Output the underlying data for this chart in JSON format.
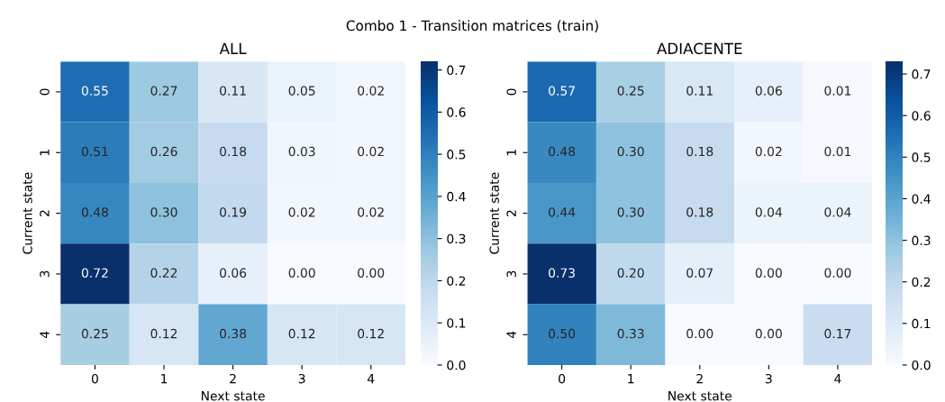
{
  "chart_data": [
    {
      "type": "other",
      "title": "Combo 1 - Transition matrices (train)"
    },
    {
      "type": "heatmap",
      "title": "ALL",
      "xlabel": "Next state",
      "ylabel": "Current state",
      "categories": [
        "0",
        "1",
        "2",
        "3",
        "4"
      ],
      "y_categories": [
        "0",
        "1",
        "2",
        "3",
        "4"
      ],
      "cells": [
        [
          0.55,
          0.27,
          0.11,
          0.05,
          0.02
        ],
        [
          0.51,
          0.26,
          0.18,
          0.03,
          0.02
        ],
        [
          0.48,
          0.3,
          0.19,
          0.02,
          0.02
        ],
        [
          0.72,
          0.22,
          0.06,
          0.0,
          0.0
        ],
        [
          0.25,
          0.12,
          0.38,
          0.12,
          0.12
        ]
      ],
      "cell_labels": [
        [
          "0.55",
          "0.27",
          "0.11",
          "0.05",
          "0.02"
        ],
        [
          "0.51",
          "0.26",
          "0.18",
          "0.03",
          "0.02"
        ],
        [
          "0.48",
          "0.30",
          "0.19",
          "0.02",
          "0.02"
        ],
        [
          "0.72",
          "0.22",
          "0.06",
          "0.00",
          "0.00"
        ],
        [
          "0.25",
          "0.12",
          "0.38",
          "0.12",
          "0.12"
        ]
      ],
      "clim": [
        0,
        0.72
      ],
      "cticks": [
        {
          "value": 0,
          "label": "0.0"
        },
        0.1,
        0.2,
        0.3,
        0.4,
        0.5,
        0.6,
        0.7
      ]
    },
    {
      "type": "heatmap",
      "title": "ADIACENTE",
      "xlabel": "Next state",
      "ylabel": "Current state",
      "categories": [
        "0",
        "1",
        "2",
        "3",
        "4"
      ],
      "y_categories": [
        "0",
        "1",
        "2",
        "3",
        "4"
      ],
      "cells": [
        [
          0.57,
          0.25,
          0.11,
          0.06,
          0.01
        ],
        [
          0.48,
          0.3,
          0.18,
          0.02,
          0.01
        ],
        [
          0.44,
          0.3,
          0.18,
          0.04,
          0.04
        ],
        [
          0.73,
          0.2,
          0.07,
          0.0,
          0.0
        ],
        [
          0.5,
          0.33,
          0.0,
          0.0,
          0.17
        ]
      ],
      "cell_labels": [
        [
          "0.57",
          "0.25",
          "0.11",
          "0.06",
          "0.01"
        ],
        [
          "0.48",
          "0.30",
          "0.18",
          "0.02",
          "0.01"
        ],
        [
          "0.44",
          "0.30",
          "0.18",
          "0.04",
          "0.04"
        ],
        [
          "0.73",
          "0.20",
          "0.07",
          "0.00",
          "0.00"
        ],
        [
          "0.50",
          "0.33",
          "0.00",
          "0.00",
          "0.17"
        ]
      ],
      "clim": [
        0,
        0.73
      ],
      "cticks": [
        {
          "value": 0,
          "label": "0.0"
        },
        0.1,
        0.2,
        0.3,
        0.4,
        0.5,
        0.6,
        0.7
      ]
    }
  ]
}
